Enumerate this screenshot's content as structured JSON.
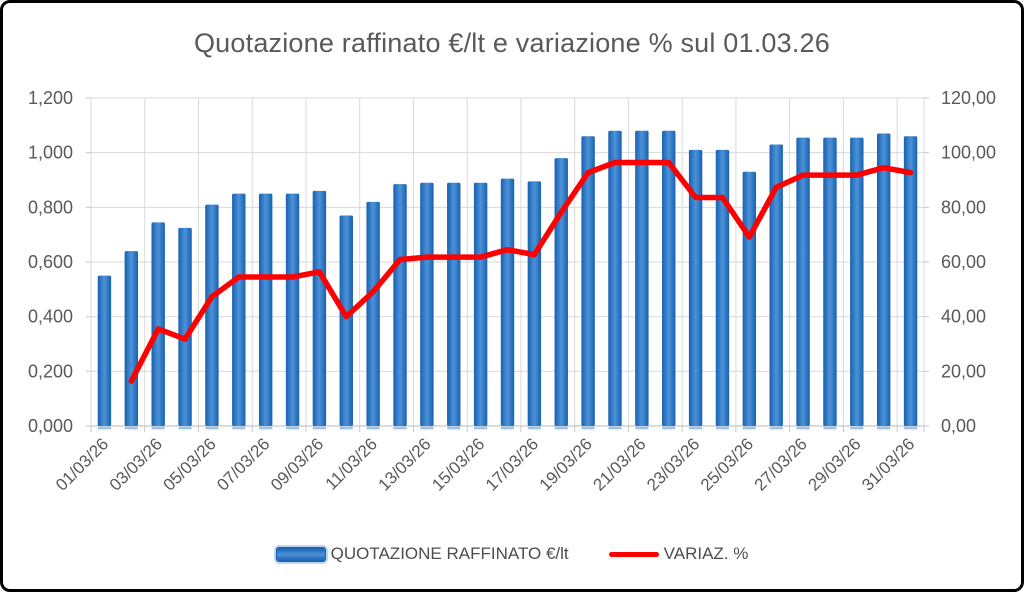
{
  "chart_data": {
    "type": "combo-bar-line",
    "title": "Quotazione raffinato €/lt e variazione % sul 01.03.26",
    "grid": true,
    "legend_position": "bottom",
    "categories": [
      "01/03/26",
      "02/03/26",
      "03/03/26",
      "04/03/26",
      "05/03/26",
      "06/03/26",
      "07/03/26",
      "08/03/26",
      "09/03/26",
      "10/03/26",
      "11/03/26",
      "12/03/26",
      "13/03/26",
      "14/03/26",
      "15/03/26",
      "16/03/26",
      "17/03/26",
      "18/03/26",
      "19/03/26",
      "20/03/26",
      "21/03/26",
      "22/03/26",
      "23/03/26",
      "24/03/26",
      "25/03/26",
      "26/03/26",
      "27/03/26",
      "28/03/26",
      "29/03/26",
      "30/03/26",
      "31/03/26"
    ],
    "series": [
      {
        "name": "QUOTAZIONE RAFFINATO €/lt",
        "type": "bar",
        "axis": "left",
        "values": [
          0.55,
          0.64,
          0.745,
          0.725,
          0.81,
          0.85,
          0.85,
          0.85,
          0.86,
          0.77,
          0.82,
          0.885,
          0.89,
          0.89,
          0.89,
          0.905,
          0.895,
          0.98,
          1.06,
          1.08,
          1.08,
          1.08,
          1.01,
          1.01,
          0.93,
          1.03,
          1.055,
          1.055,
          1.055,
          1.07,
          1.06
        ]
      },
      {
        "name": "VARIAZ. %",
        "type": "line",
        "axis": "right",
        "values": [
          null,
          16.4,
          35.5,
          31.8,
          47.3,
          54.5,
          54.5,
          54.5,
          56.4,
          40.0,
          49.1,
          60.9,
          61.8,
          61.8,
          61.8,
          64.5,
          62.7,
          78.2,
          92.7,
          96.4,
          96.4,
          96.4,
          83.6,
          83.6,
          69.1,
          87.3,
          91.8,
          91.8,
          91.8,
          94.5,
          92.7
        ]
      }
    ],
    "left_axis": {
      "min": 0,
      "max": 1.2,
      "step": 0.2,
      "tick_labels": [
        "0,000",
        "0,200",
        "0,400",
        "0,600",
        "0,800",
        "1,000",
        "1,200"
      ]
    },
    "right_axis": {
      "min": 0,
      "max": 120,
      "step": 20,
      "tick_labels": [
        "0,00",
        "20,00",
        "40,00",
        "60,00",
        "80,00",
        "100,00",
        "120,00"
      ]
    },
    "x_axis": {
      "label_every": 2,
      "tick_labels": [
        "01/03/26",
        "03/03/26",
        "05/03/26",
        "07/03/26",
        "09/03/26",
        "11/03/26",
        "13/03/26",
        "15/03/26",
        "17/03/26",
        "19/03/26",
        "21/03/26",
        "23/03/26",
        "25/03/26",
        "27/03/26",
        "29/03/26",
        "31/03/26"
      ]
    }
  },
  "colors": {
    "bar_edge": "#1a5fad",
    "bar_main": "#2672c0",
    "bar_center": "#4f91d6",
    "bar_cap": "#9dc3e6",
    "line": "#ff0000",
    "grid": "#d9d9d9",
    "axis_line": "#c6c6c6",
    "axis_text": "#595959",
    "title_text": "#595959",
    "frame_border": "#000000",
    "background": "#ffffff"
  }
}
